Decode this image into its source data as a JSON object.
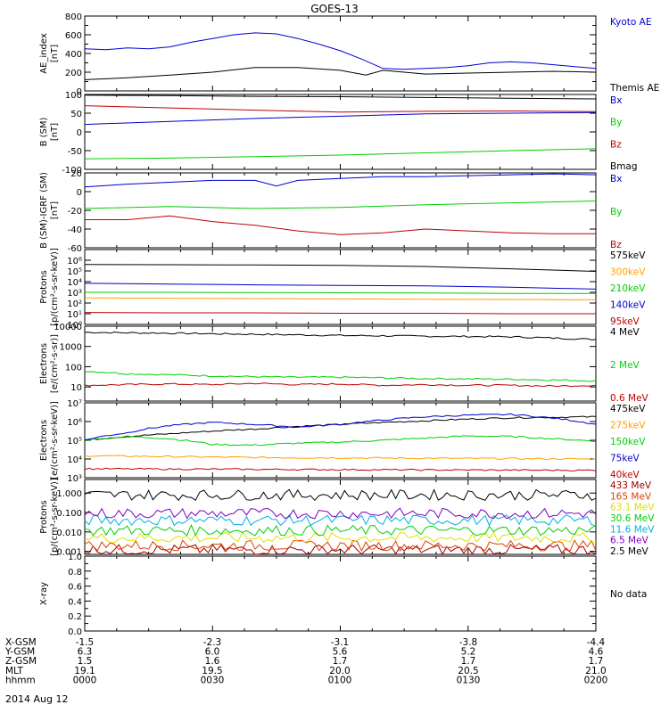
{
  "title": "GOES-13",
  "footer_date": "2014 Aug 12",
  "colors": {
    "black": "#000000",
    "blue": "#0000d0",
    "green": "#00d000",
    "red": "#c00000",
    "orange": "#ffa000",
    "cyan": "#00b0e0",
    "purple": "#8000c0",
    "yellow": "#e0e000",
    "darkred": "#a00000",
    "orangered": "#e04000"
  },
  "x_axis": {
    "rows": [
      {
        "label": "X-GSM",
        "values": [
          "-1.5",
          "-2.3",
          "-3.1",
          "-3.8",
          "-4.4"
        ]
      },
      {
        "label": "Y-GSM",
        "values": [
          "6.3",
          "6.0",
          "5.6",
          "5.2",
          "4.6"
        ]
      },
      {
        "label": "Z-GSM",
        "values": [
          "1.5",
          "1.6",
          "1.7",
          "1.7",
          "1.7"
        ]
      },
      {
        "label": "MLT",
        "values": [
          "19.1",
          "19.5",
          "20.0",
          "20.5",
          "21.0"
        ]
      },
      {
        "label": "hhmm",
        "values": [
          "0000",
          "0030",
          "0100",
          "0130",
          "0200"
        ]
      }
    ]
  },
  "chart_data": [
    {
      "type": "line",
      "ylabel": "AE_index\n[nT]",
      "scale": "linear",
      "ylim": [
        0,
        800
      ],
      "ticks": [
        "0",
        "200",
        "400",
        "600",
        "800"
      ],
      "minor_ticks": [
        100,
        300,
        500,
        700
      ],
      "series": [
        {
          "name": "Kyoto AE",
          "color": "#0000d0",
          "x": [
            0,
            5,
            10,
            15,
            20,
            25,
            30,
            35,
            40,
            45,
            50,
            55,
            60,
            65,
            70,
            75,
            80,
            85,
            90,
            95,
            100,
            105,
            110,
            115,
            120
          ],
          "y": [
            450,
            440,
            460,
            450,
            470,
            520,
            560,
            600,
            620,
            610,
            560,
            500,
            430,
            340,
            240,
            230,
            240,
            250,
            270,
            300,
            310,
            300,
            280,
            260,
            240
          ]
        },
        {
          "name": "Themis AE",
          "color": "#000000",
          "x": [
            0,
            10,
            20,
            30,
            40,
            50,
            60,
            66,
            70,
            80,
            90,
            100,
            110,
            120
          ],
          "y": [
            120,
            140,
            170,
            200,
            250,
            250,
            220,
            170,
            220,
            180,
            190,
            200,
            210,
            200
          ]
        }
      ]
    },
    {
      "type": "line",
      "ylabel": "B (SM)\n[nT]",
      "scale": "linear",
      "ylim": [
        -100,
        100
      ],
      "ticks": [
        "-100",
        "-50",
        "0",
        "50",
        "100"
      ],
      "series": [
        {
          "name": "Bx",
          "color": "#0000d0",
          "x": [
            0,
            20,
            40,
            60,
            80,
            100,
            120
          ],
          "y": [
            20,
            28,
            36,
            42,
            48,
            50,
            52
          ]
        },
        {
          "name": "By",
          "color": "#00d000",
          "x": [
            0,
            20,
            40,
            60,
            80,
            100,
            120
          ],
          "y": [
            -72,
            -70,
            -66,
            -62,
            -56,
            -50,
            -45
          ]
        },
        {
          "name": "Bz",
          "color": "#c00000",
          "x": [
            0,
            20,
            40,
            60,
            80,
            100,
            120
          ],
          "y": [
            70,
            64,
            58,
            53,
            55,
            56,
            54
          ]
        },
        {
          "name": "Bmag",
          "color": "#000000",
          "x": [
            0,
            20,
            40,
            60,
            80,
            100,
            120
          ],
          "y": [
            98,
            97,
            95,
            94,
            92,
            90,
            88
          ]
        }
      ]
    },
    {
      "type": "line",
      "ylabel": "B (SM)-IGRF (SM)\n[nT]",
      "scale": "linear",
      "ylim": [
        -60,
        20
      ],
      "ticks": [
        "-60",
        "-40",
        "-20",
        "0",
        "20"
      ],
      "series": [
        {
          "name": "Bx",
          "color": "#0000d0",
          "x": [
            0,
            10,
            20,
            30,
            40,
            45,
            50,
            60,
            70,
            80,
            90,
            100,
            110,
            120
          ],
          "y": [
            5,
            8,
            10,
            12,
            12,
            6,
            12,
            14,
            16,
            16,
            17,
            18,
            19,
            18
          ]
        },
        {
          "name": "By",
          "color": "#00d000",
          "x": [
            0,
            20,
            40,
            60,
            80,
            100,
            120
          ],
          "y": [
            -18,
            -16,
            -18,
            -17,
            -14,
            -12,
            -10
          ]
        },
        {
          "name": "Bz",
          "color": "#c00000",
          "x": [
            0,
            10,
            20,
            30,
            40,
            50,
            60,
            70,
            80,
            90,
            100,
            110,
            120
          ],
          "y": [
            -30,
            -30,
            -26,
            -32,
            -36,
            -42,
            -46,
            -44,
            -40,
            -42,
            -44,
            -45,
            -45
          ]
        }
      ]
    },
    {
      "type": "line",
      "ylabel": "Protons\n[p/(cm²-s-sr-keV)]",
      "scale": "log",
      "ylim": [
        1,
        10000000
      ],
      "ticks": [
        "10⁰",
        "10¹",
        "10²",
        "10³",
        "10⁴",
        "10⁵",
        "10⁶"
      ],
      "series": [
        {
          "name": "575keV",
          "color": "#000000",
          "x": [
            0,
            20,
            40,
            60,
            80,
            100,
            120
          ],
          "y": [
            400000,
            380000,
            360000,
            330000,
            260000,
            160000,
            90000
          ]
        },
        {
          "name": "300keV",
          "color": "#ffa000",
          "x": [
            0,
            40,
            80,
            120
          ],
          "y": [
            300,
            260,
            230,
            200
          ]
        },
        {
          "name": "210keV",
          "color": "#00d000",
          "x": [
            0,
            20,
            40,
            60,
            80,
            100,
            120
          ],
          "y": [
            1000,
            1000,
            950,
            900,
            850,
            800,
            800
          ]
        },
        {
          "name": "140keV",
          "color": "#0000d0",
          "x": [
            0,
            20,
            40,
            60,
            80,
            100,
            120
          ],
          "y": [
            7000,
            6000,
            5000,
            4500,
            4000,
            3000,
            2000
          ]
        },
        {
          "name": "95keV",
          "color": "#c00000",
          "x": [
            0,
            20,
            40,
            60,
            80,
            100,
            120
          ],
          "y": [
            13,
            12,
            12,
            11,
            11,
            10,
            10
          ]
        }
      ]
    },
    {
      "type": "line",
      "ylabel": "Electrons\n[e/(cm²-s-sr)]",
      "scale": "log",
      "ylim": [
        2,
        10000
      ],
      "ticks": [
        "10",
        "100",
        "1000",
        "10000"
      ],
      "series": [
        {
          "name": "4 MeV",
          "color": "#000000",
          "x": [
            0,
            20,
            40,
            60,
            80,
            100,
            120
          ],
          "y": [
            5000,
            4500,
            4000,
            3500,
            3200,
            3000,
            2200
          ]
        },
        {
          "name": "2 MeV",
          "color": "#00d000",
          "x": [
            0,
            10,
            20,
            30,
            40,
            50,
            60,
            70,
            80,
            90,
            100,
            110,
            120
          ],
          "y": [
            60,
            45,
            40,
            35,
            32,
            30,
            30,
            28,
            26,
            25,
            24,
            22,
            20
          ]
        },
        {
          "name": "0.6 MeV",
          "color": "#c00000",
          "x": [
            0,
            10,
            20,
            30,
            40,
            50,
            60,
            70,
            80,
            90,
            100,
            110,
            120
          ],
          "y": [
            12,
            13,
            14,
            13,
            15,
            13,
            14,
            12,
            13,
            12,
            12,
            11,
            12
          ]
        }
      ]
    },
    {
      "type": "line",
      "ylabel": "Electrons\n[e/(cm²-s-sr-keV)]",
      "scale": "log",
      "ylim": [
        1000,
        10000000
      ],
      "ticks": [
        "10³",
        "10⁴",
        "10⁵",
        "10⁶",
        "10⁷"
      ],
      "series": [
        {
          "name": "475keV",
          "color": "#000000",
          "x": [
            0,
            20,
            40,
            60,
            80,
            100,
            120
          ],
          "y": [
            100000,
            220000,
            400000,
            700000,
            1100000,
            1600000,
            1800000
          ]
        },
        {
          "name": "275keV",
          "color": "#ffa000",
          "x": [
            0,
            40,
            80,
            120
          ],
          "y": [
            15000,
            12000,
            11000,
            10000
          ]
        },
        {
          "name": "150keV",
          "color": "#00d000",
          "x": [
            0,
            10,
            20,
            30,
            40,
            50,
            60,
            70,
            80,
            90,
            100,
            110,
            120
          ],
          "y": [
            100000,
            160000,
            120000,
            60000,
            55000,
            70000,
            80000,
            100000,
            130000,
            170000,
            160000,
            120000,
            90000
          ]
        },
        {
          "name": "75keV",
          "color": "#0000d0",
          "x": [
            0,
            10,
            20,
            30,
            40,
            50,
            60,
            70,
            80,
            90,
            100,
            110,
            120
          ],
          "y": [
            100000,
            250000,
            600000,
            900000,
            700000,
            500000,
            700000,
            1200000,
            1800000,
            2200000,
            2400000,
            1500000,
            700000
          ]
        },
        {
          "name": "40keV",
          "color": "#c00000",
          "x": [
            0,
            40,
            80,
            120
          ],
          "y": [
            3000,
            2800,
            2600,
            2500
          ]
        }
      ]
    },
    {
      "type": "line",
      "ylabel": "Protons\n[p/(cm²-s-sr-keV)]",
      "scale": "log",
      "ylim": [
        0.0007,
        5
      ],
      "ticks": [
        "0.001",
        "0.010",
        "0.100",
        "1.000"
      ],
      "series": [
        {
          "name": "433 MeV",
          "color": "#a00000",
          "x": [
            0,
            120
          ],
          "y": [
            0.0012,
            0.0012
          ]
        },
        {
          "name": "165 MeV",
          "color": "#e04000",
          "x": [
            0,
            120
          ],
          "y": [
            0.002,
            0.002
          ]
        },
        {
          "name": "63.1 MeV",
          "color": "#e0e000",
          "x": [
            0,
            120
          ],
          "y": [
            0.005,
            0.005
          ]
        },
        {
          "name": "30.6 MeV",
          "color": "#00d000",
          "x": [
            0,
            120
          ],
          "y": [
            0.012,
            0.012
          ]
        },
        {
          "name": "11.6 MeV",
          "color": "#00b0e0",
          "x": [
            0,
            120
          ],
          "y": [
            0.04,
            0.04
          ]
        },
        {
          "name": "6.5 MeV",
          "color": "#8000c0",
          "x": [
            0,
            120
          ],
          "y": [
            0.09,
            0.09
          ]
        },
        {
          "name": "2.5 MeV",
          "color": "#000000",
          "x": [
            0,
            120
          ],
          "y": [
            0.8,
            0.8
          ]
        }
      ]
    },
    {
      "type": "line",
      "ylabel": "X-ray",
      "scale": "linear",
      "ylim": [
        0,
        1
      ],
      "ticks": [
        "0.0",
        "0.2",
        "0.4",
        "0.6",
        "0.8",
        "1.0"
      ],
      "minor_ticks": [
        0.1,
        0.3,
        0.5,
        0.7,
        0.9
      ],
      "nodata": "No data",
      "series": []
    }
  ]
}
